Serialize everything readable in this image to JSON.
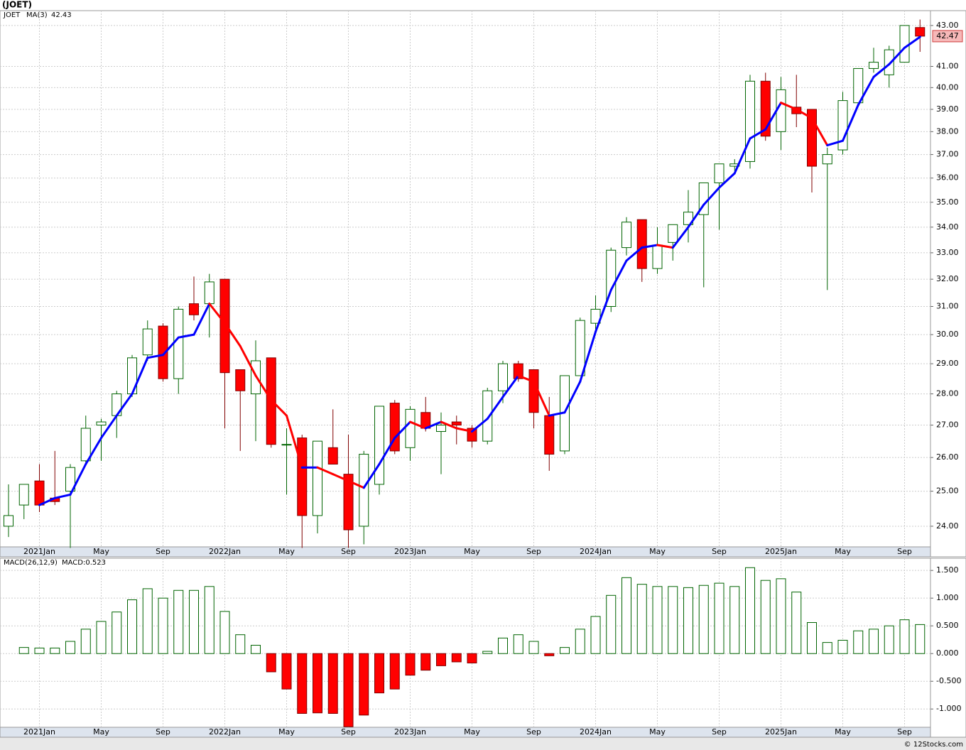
{
  "chart_data": [
    {
      "type": "candlestick",
      "title": "(JOET)",
      "ticker": "JOET",
      "log_scale": true,
      "grid": true,
      "up_color": "#006400",
      "down_color": "#ff0000",
      "categories": [
        null,
        null,
        "2021Jan",
        null,
        null,
        null,
        "May",
        null,
        null,
        null,
        "Sep",
        null,
        null,
        null,
        "2022Jan",
        null,
        null,
        null,
        "May",
        null,
        null,
        null,
        "Sep",
        null,
        null,
        null,
        "2023Jan",
        null,
        null,
        null,
        "May",
        null,
        null,
        null,
        "Sep",
        null,
        null,
        null,
        "2024Jan",
        null,
        null,
        null,
        "May",
        null,
        null,
        null,
        "Sep",
        null,
        null,
        null,
        "2025Jan",
        null,
        null,
        null,
        "May",
        null,
        null,
        null,
        "Sep",
        null
      ],
      "open": [
        24.0,
        24.6,
        25.3,
        24.8,
        25.0,
        25.9,
        27.0,
        27.3,
        28.0,
        29.3,
        30.3,
        28.5,
        31.1,
        31.1,
        32.0,
        28.8,
        28.0,
        29.2,
        26.4,
        26.6,
        24.3,
        26.3,
        25.5,
        24.0,
        25.2,
        27.7,
        26.3,
        27.4,
        26.8,
        27.1,
        26.9,
        26.5,
        28.1,
        29.0,
        28.8,
        27.3,
        26.2,
        28.6,
        30.4,
        31.0,
        33.2,
        34.3,
        32.4,
        33.4,
        34.1,
        34.5,
        35.8,
        36.5,
        36.7,
        40.3,
        38.0,
        39.1,
        39.0,
        36.6,
        37.2,
        39.3,
        40.9,
        40.6,
        41.2,
        42.9
      ],
      "high": [
        25.2,
        25.2,
        25.8,
        26.2,
        25.8,
        27.3,
        27.2,
        28.1,
        29.3,
        30.5,
        30.4,
        31.0,
        32.1,
        32.2,
        32.0,
        28.8,
        29.8,
        29.2,
        26.9,
        26.7,
        26.5,
        27.5,
        26.7,
        26.2,
        27.6,
        27.8,
        27.6,
        27.9,
        27.4,
        27.3,
        27.0,
        28.2,
        29.1,
        29.1,
        28.8,
        27.9,
        28.6,
        30.6,
        31.4,
        33.2,
        34.4,
        34.3,
        34.0,
        34.1,
        35.5,
        35.8,
        36.6,
        36.8,
        40.6,
        40.7,
        40.5,
        40.6,
        39.0,
        37.3,
        39.8,
        40.9,
        41.9,
        42.0,
        43.0,
        43.3
      ],
      "low": [
        23.7,
        24.2,
        24.4,
        24.6,
        23.4,
        25.8,
        25.9,
        26.6,
        27.9,
        29.1,
        28.4,
        28.0,
        30.5,
        29.9,
        26.9,
        26.2,
        26.5,
        26.3,
        24.9,
        23.4,
        23.8,
        25.8,
        23.4,
        23.5,
        24.9,
        26.1,
        25.9,
        26.8,
        25.5,
        26.4,
        26.3,
        26.4,
        27.7,
        28.4,
        26.9,
        25.6,
        26.1,
        28.6,
        30.0,
        30.8,
        32.9,
        31.9,
        32.2,
        32.7,
        33.4,
        31.7,
        33.9,
        36.3,
        36.4,
        37.6,
        37.2,
        38.2,
        35.4,
        31.6,
        37.0,
        39.2,
        40.7,
        40.0,
        41.2,
        41.7
      ],
      "close": [
        24.3,
        25.2,
        24.6,
        24.7,
        25.7,
        26.9,
        27.1,
        28.0,
        29.2,
        30.2,
        28.5,
        30.9,
        30.7,
        31.9,
        28.7,
        28.1,
        29.1,
        26.4,
        26.4,
        24.3,
        26.5,
        25.8,
        23.9,
        26.1,
        27.6,
        26.2,
        27.5,
        26.9,
        27.0,
        27.0,
        26.5,
        28.1,
        29.0,
        28.5,
        27.4,
        26.1,
        28.6,
        30.5,
        30.9,
        33.1,
        34.2,
        32.4,
        33.3,
        34.1,
        34.6,
        35.8,
        36.6,
        36.6,
        40.3,
        37.8,
        39.9,
        38.8,
        36.5,
        37.0,
        39.4,
        40.9,
        41.2,
        41.8,
        43.0,
        42.47
      ],
      "series": [
        {
          "name": "MA(3)",
          "color": "#0000ff",
          "down_color": "#ff0000",
          "values": [
            null,
            null,
            24.6,
            24.8,
            24.9,
            25.8,
            26.6,
            27.3,
            28.0,
            29.2,
            29.3,
            29.9,
            30.0,
            31.1,
            30.4,
            29.6,
            28.6,
            27.8,
            27.3,
            25.7,
            25.7,
            25.5,
            25.3,
            25.1,
            25.8,
            26.6,
            27.1,
            26.9,
            27.1,
            26.9,
            26.8,
            27.2,
            27.9,
            28.6,
            28.4,
            27.3,
            27.4,
            28.4,
            30.1,
            31.6,
            32.7,
            33.2,
            33.3,
            33.2,
            34.0,
            34.9,
            35.6,
            36.2,
            37.7,
            38.1,
            39.3,
            39.0,
            38.6,
            37.4,
            37.6,
            39.2,
            40.5,
            41.1,
            41.9,
            42.43
          ]
        }
      ],
      "ylim": [
        23.43,
        43.75
      ],
      "yticks": [
        {
          "value": 24,
          "label": "24.00"
        },
        {
          "value": 25,
          "label": "25.00"
        },
        {
          "value": 26,
          "label": "26.00"
        },
        {
          "value": 27,
          "label": "27.00"
        },
        {
          "value": 28,
          "label": "28.00"
        },
        {
          "value": 29,
          "label": "29.00"
        },
        {
          "value": 30,
          "label": "30.00"
        },
        {
          "value": 31,
          "label": "31.00"
        },
        {
          "value": 32,
          "label": "32.00"
        },
        {
          "value": 33,
          "label": "33.00"
        },
        {
          "value": 34,
          "label": "34.00"
        },
        {
          "value": 35,
          "label": "35.00"
        },
        {
          "value": 36,
          "label": "36.00"
        },
        {
          "value": 37,
          "label": "37.00"
        },
        {
          "value": 38,
          "label": "38.00"
        },
        {
          "value": 39,
          "label": "39.00"
        },
        {
          "value": 40,
          "label": "40.00"
        },
        {
          "value": 41,
          "label": "41.00"
        },
        {
          "value": 43,
          "label": "43.00"
        }
      ]
    },
    {
      "type": "bar",
      "grid": true,
      "categories": [
        null,
        null,
        "2021Jan",
        null,
        null,
        null,
        "May",
        null,
        null,
        null,
        "Sep",
        null,
        null,
        null,
        "2022Jan",
        null,
        null,
        null,
        "May",
        null,
        null,
        null,
        "Sep",
        null,
        null,
        null,
        "2023Jan",
        null,
        null,
        null,
        "May",
        null,
        null,
        null,
        "Sep",
        null,
        null,
        null,
        "2024Jan",
        null,
        null,
        null,
        "May",
        null,
        null,
        null,
        "Sep",
        null,
        null,
        null,
        "2025Jan",
        null,
        null,
        null,
        "May",
        null,
        null,
        null,
        "Sep",
        null
      ],
      "series": [
        {
          "name": "MACD(26,12,9)",
          "color": "#006400",
          "down_color": "#ff0000",
          "values": [
            null,
            0.11,
            0.1,
            0.1,
            0.22,
            0.44,
            0.58,
            0.75,
            0.97,
            1.17,
            1.0,
            1.14,
            1.14,
            1.21,
            0.76,
            0.34,
            0.15,
            -0.33,
            -0.64,
            -1.08,
            -1.07,
            -1.08,
            -1.32,
            -1.11,
            -0.71,
            -0.64,
            -0.39,
            -0.3,
            -0.22,
            -0.15,
            -0.17,
            0.04,
            0.28,
            0.34,
            0.22,
            -0.04,
            0.11,
            0.44,
            0.67,
            1.05,
            1.37,
            1.25,
            1.21,
            1.21,
            1.19,
            1.23,
            1.27,
            1.21,
            1.55,
            1.32,
            1.35,
            1.11,
            0.56,
            0.2,
            0.24,
            0.41,
            0.44,
            0.5,
            0.61,
            0.523
          ],
          "value_labels": [
            null,
            null,
            null,
            null,
            null,
            null,
            null,
            null,
            null,
            null,
            null,
            null,
            null,
            null,
            null,
            null,
            null,
            null,
            null,
            null,
            null,
            null,
            null,
            null,
            null,
            null,
            null,
            null,
            null,
            null,
            null,
            null,
            null,
            null,
            null,
            null,
            null,
            null,
            null,
            null,
            null,
            null,
            null,
            null,
            null,
            null,
            null,
            null,
            null,
            null,
            null,
            null,
            null,
            null,
            null,
            null,
            null,
            null,
            null,
            "MACD:0.523"
          ]
        }
      ],
      "ylim": [
        -1.33,
        1.72
      ],
      "yticks": [
        {
          "value": 1.5,
          "label": "1.500"
        },
        {
          "value": 1,
          "label": "1.000"
        },
        {
          "value": 0.5,
          "label": "0.500"
        },
        {
          "value": 0,
          "label": "0.000"
        },
        {
          "value": -0.5,
          "label": "-0.500"
        },
        {
          "value": -1,
          "label": "-1.000"
        }
      ]
    }
  ],
  "footer": "© 12Stocks.com"
}
